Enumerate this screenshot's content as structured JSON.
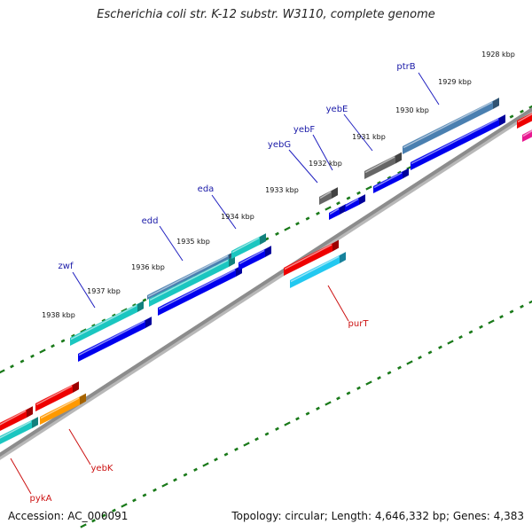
{
  "title": "Escherichia coli str. K-12 substr. W3110, complete genome",
  "footer": {
    "accession": "Accession: AC_000091",
    "summary": "Topology: circular; Length: 4,646,332 bp; Genes: 4,383"
  },
  "colors": {
    "backbone": "#8c8c8c",
    "tick": "#1a7a1a",
    "forward_label": "#1a1aa8",
    "reverse_label": "#cc1111",
    "cds": "#0000ee",
    "teal": "#1bc6c0",
    "steelblue": "#4a7fb0",
    "gray": "#666666",
    "red": "#ee0000",
    "orange": "#ff9900",
    "cyan": "#22c8f0",
    "magenta": "#e81890"
  },
  "scale_ticks": [
    {
      "label": "1928 kbp"
    },
    {
      "label": "1929 kbp"
    },
    {
      "label": "1930 kbp"
    },
    {
      "label": "1931 kbp"
    },
    {
      "label": "1932 kbp"
    },
    {
      "label": "1933 kbp"
    },
    {
      "label": "1934 kbp"
    },
    {
      "label": "1935 kbp"
    },
    {
      "label": "1936 kbp"
    },
    {
      "label": "1937 kbp"
    },
    {
      "label": "1938 kbp"
    }
  ],
  "genes_forward": [
    {
      "name": "ptrB"
    },
    {
      "name": "yebE"
    },
    {
      "name": "yebF"
    },
    {
      "name": "yebG"
    },
    {
      "name": "eda"
    },
    {
      "name": "edd"
    },
    {
      "name": "zwf"
    }
  ],
  "genes_reverse": [
    {
      "name": "purT"
    },
    {
      "name": "yebK"
    },
    {
      "name": "pykA"
    }
  ]
}
